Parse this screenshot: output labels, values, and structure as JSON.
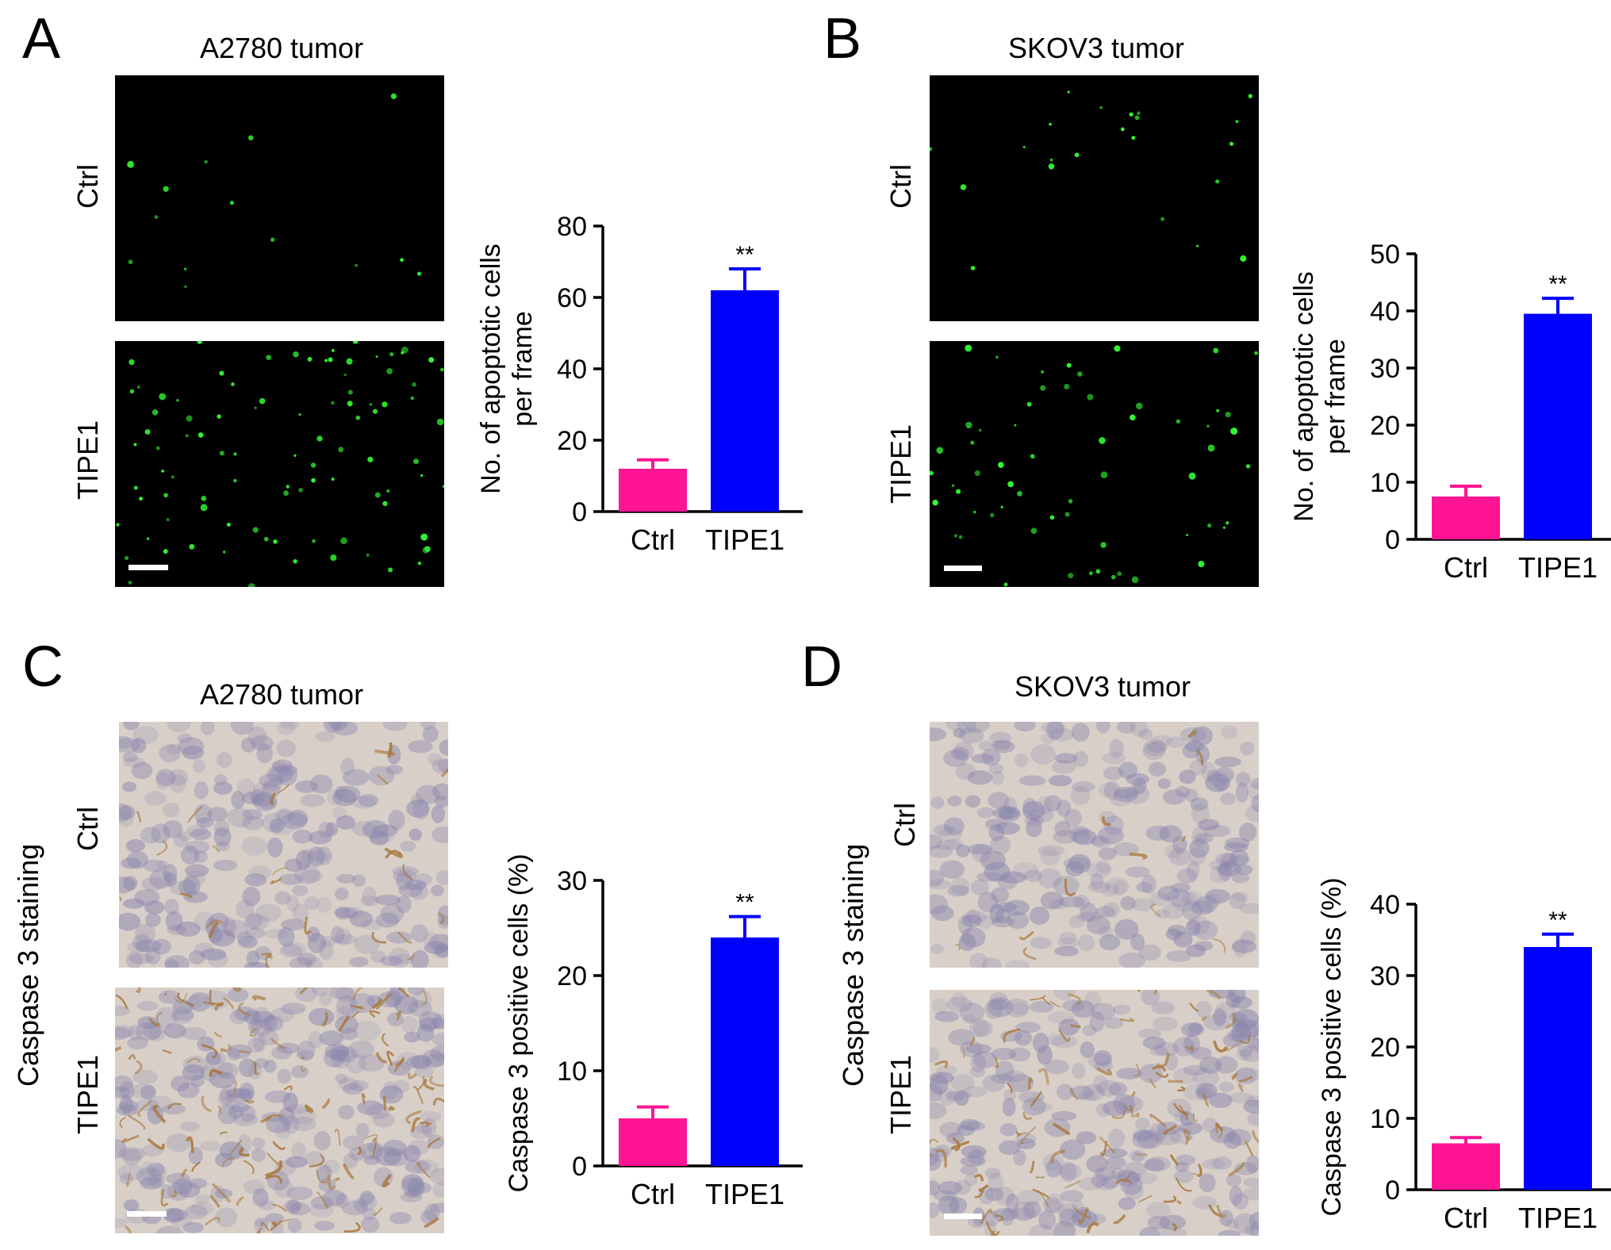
{
  "figure": {
    "panels": [
      {
        "letter": "A",
        "title": "A2780 tumor",
        "stain_label": "",
        "rows": [
          "Ctrl",
          "TIPE1"
        ],
        "image_type": "fluorescence"
      },
      {
        "letter": "B",
        "title": "SKOV3 tumor",
        "stain_label": "",
        "rows": [
          "Ctrl",
          "TIPE1"
        ],
        "image_type": "fluorescence"
      },
      {
        "letter": "C",
        "title": "A2780 tumor",
        "stain_label": "Caspase 3 staining",
        "rows": [
          "Ctrl",
          "TIPE1"
        ],
        "image_type": "ihc"
      },
      {
        "letter": "D",
        "title": "SKOV3 tumor",
        "stain_label": "Caspase 3 staining",
        "rows": [
          "Ctrl",
          "TIPE1"
        ],
        "image_type": "ihc"
      }
    ]
  },
  "colors": {
    "ctrl": "#ff1493",
    "tipe1": "#0000ff",
    "fluor_bg": "#000000",
    "fluor_spot": "#33ff33",
    "ihc_bg": "#d8d0c8",
    "ihc_nucleus": "#8a86ad",
    "ihc_brown": "#a8783c"
  },
  "chart_data": [
    {
      "type": "bar",
      "panel": "A",
      "categories": [
        "Ctrl",
        "TIPE1"
      ],
      "values": [
        12,
        62
      ],
      "errors": [
        2.5,
        6
      ],
      "significance": [
        "",
        "**"
      ],
      "ylabel_lines": [
        "No. of apoptotic cells",
        "per frame"
      ],
      "ylim": [
        0,
        80
      ],
      "yticks": [
        "0",
        "20",
        "40",
        "60",
        "80"
      ]
    },
    {
      "type": "bar",
      "panel": "B",
      "categories": [
        "Ctrl",
        "TIPE1"
      ],
      "values": [
        7.5,
        39.5
      ],
      "errors": [
        1.8,
        2.7
      ],
      "significance": [
        "",
        "**"
      ],
      "ylabel_lines": [
        "No. of apoptotic cells",
        "per frame"
      ],
      "ylim": [
        0,
        50
      ],
      "yticks": [
        "0",
        "10",
        "20",
        "30",
        "40",
        "50"
      ]
    },
    {
      "type": "bar",
      "panel": "C",
      "categories": [
        "Ctrl",
        "TIPE1"
      ],
      "values": [
        5,
        24
      ],
      "errors": [
        1.2,
        2.2
      ],
      "significance": [
        "",
        "**"
      ],
      "ylabel_lines": [
        "Caspase 3 positive cells (%)"
      ],
      "ylim": [
        0,
        30
      ],
      "yticks": [
        "0",
        "10",
        "20",
        "30"
      ]
    },
    {
      "type": "bar",
      "panel": "D",
      "categories": [
        "Ctrl",
        "TIPE1"
      ],
      "values": [
        6.5,
        34
      ],
      "errors": [
        0.8,
        1.8
      ],
      "significance": [
        "",
        "**"
      ],
      "ylabel_lines": [
        "Caspase 3 positive cells (%)"
      ],
      "ylim": [
        0,
        40
      ],
      "yticks": [
        "0",
        "10",
        "20",
        "30",
        "40"
      ]
    }
  ]
}
